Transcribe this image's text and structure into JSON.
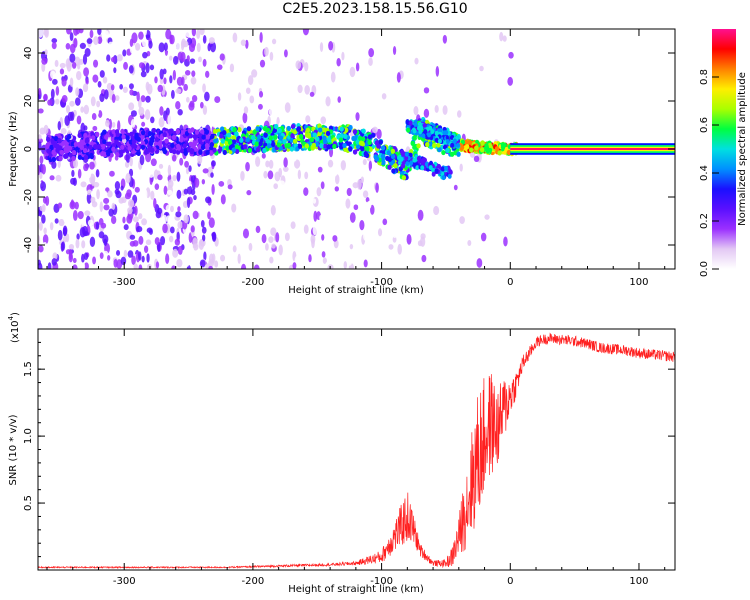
{
  "title": "C2E5.2023.158.15.56.G10",
  "chart_data": [
    {
      "type": "heatmap",
      "xlabel": "Height of straight line (km)",
      "ylabel": "Frequency (Hz)",
      "xlim": [
        -367,
        128
      ],
      "ylim": [
        -50,
        50
      ],
      "xticks": [
        -300,
        -200,
        -100,
        0,
        100
      ],
      "yticks": [
        -40,
        -20,
        0,
        20,
        40
      ],
      "colorbar": {
        "label": "Normalized spectral amplitude",
        "range": [
          0,
          1
        ],
        "ticks": [
          0.0,
          0.2,
          0.4,
          0.6,
          0.8
        ],
        "colors": [
          "#ffffff",
          "#e3c8f4",
          "#9b30ff",
          "#5a10ff",
          "#1a10ff",
          "#0090ff",
          "#00e0e0",
          "#00ff40",
          "#aaff00",
          "#ffee00",
          "#ff8000",
          "#ff0000",
          "#ff1090"
        ]
      },
      "ridge": [
        {
          "x": -360,
          "freq": 0
        },
        {
          "x": -320,
          "freq": 2
        },
        {
          "x": -280,
          "freq": 3
        },
        {
          "x": -240,
          "freq": 3
        },
        {
          "x": -200,
          "freq": 4
        },
        {
          "x": -160,
          "freq": 5
        },
        {
          "x": -130,
          "freq": 5
        },
        {
          "x": -110,
          "freq": 2
        },
        {
          "x": -95,
          "freq": -3
        },
        {
          "x": -80,
          "freq": -8
        },
        {
          "x": -70,
          "freq": 8
        },
        {
          "x": -50,
          "freq": 3
        },
        {
          "x": -30,
          "freq": 1
        },
        {
          "x": 0,
          "freq": 0
        },
        {
          "x": 128,
          "freq": 0
        }
      ]
    },
    {
      "type": "line",
      "xlabel": "Height of straight line (km)",
      "ylabel": "SNR (10 * v/v)",
      "yscale_label": "(x10",
      "yscale_exp": "4",
      "xlim": [
        -367,
        128
      ],
      "ylim": [
        0,
        1.8
      ],
      "xticks": [
        -300,
        -200,
        -100,
        0,
        100
      ],
      "yticks": [
        0.5,
        1.0,
        1.5
      ],
      "ytick_labels": [
        "0.5",
        "1.0",
        "1.5"
      ],
      "series": [
        {
          "color": "#ff2020",
          "x": [
            -367,
            -340,
            -300,
            -260,
            -220,
            -180,
            -140,
            -120,
            -100,
            -90,
            -80,
            -75,
            -70,
            -60,
            -50,
            -45,
            -40,
            -35,
            -30,
            -25,
            -20,
            -15,
            -10,
            -5,
            0,
            5,
            10,
            15,
            20,
            25,
            30,
            40,
            50,
            60,
            70,
            80,
            90,
            100,
            110,
            120,
            128
          ],
          "y": [
            0.02,
            0.02,
            0.02,
            0.02,
            0.02,
            0.03,
            0.04,
            0.05,
            0.1,
            0.25,
            0.4,
            0.3,
            0.15,
            0.05,
            0.05,
            0.1,
            0.25,
            0.45,
            0.65,
            0.85,
            1.0,
            1.1,
            1.05,
            1.2,
            1.3,
            1.4,
            1.55,
            1.62,
            1.7,
            1.72,
            1.73,
            1.72,
            1.71,
            1.69,
            1.66,
            1.65,
            1.64,
            1.62,
            1.61,
            1.6,
            1.59
          ],
          "amp": [
            0.005,
            0.005,
            0.005,
            0.005,
            0.005,
            0.008,
            0.01,
            0.015,
            0.05,
            0.12,
            0.2,
            0.12,
            0.05,
            0.02,
            0.03,
            0.08,
            0.15,
            0.3,
            0.4,
            0.5,
            0.45,
            0.4,
            0.3,
            0.25,
            0.15,
            0.1,
            0.06,
            0.05,
            0.04,
            0.04,
            0.04,
            0.04,
            0.04,
            0.04,
            0.04,
            0.04,
            0.04,
            0.04,
            0.04,
            0.04,
            0.04
          ]
        }
      ]
    }
  ]
}
